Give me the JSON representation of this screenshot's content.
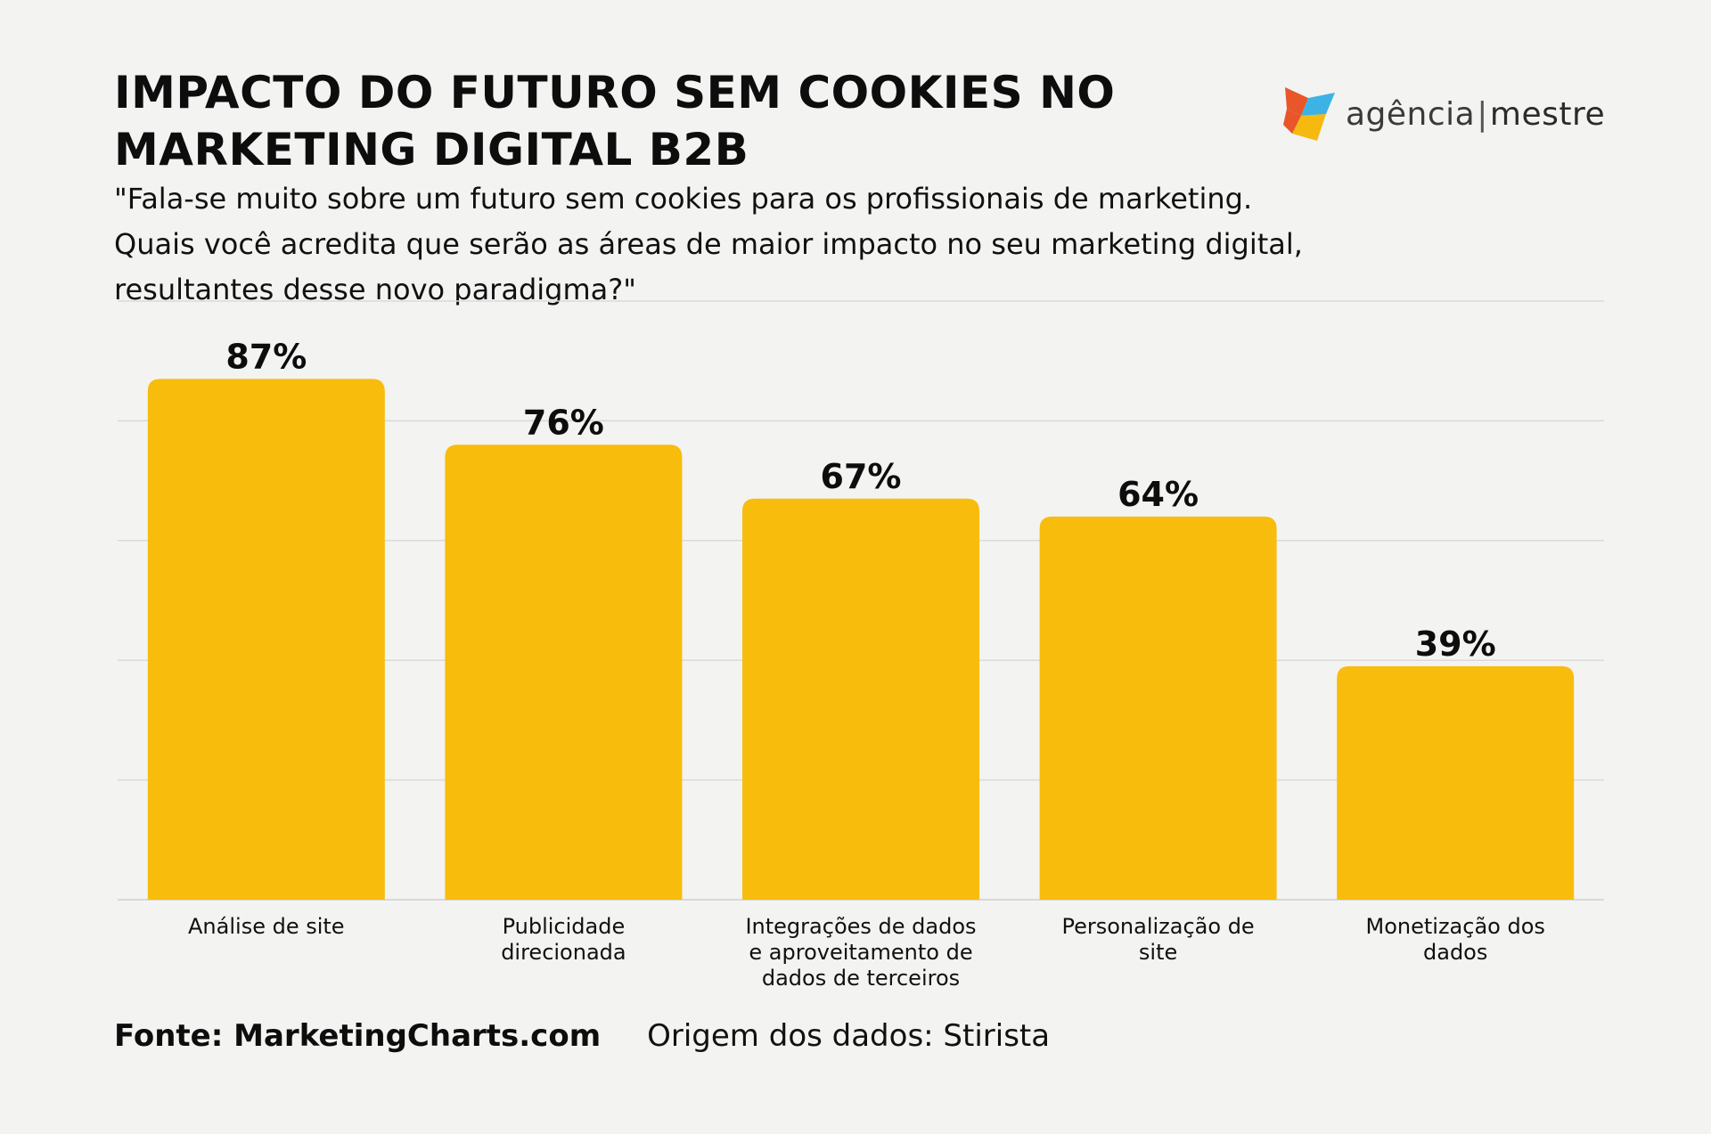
{
  "header": {
    "title_line1": "IMPACTO DO FUTURO SEM COOKIES NO",
    "title_line2": "MARKETING DIGITAL B2B",
    "question_line1": "\"Fala-se muito sobre um futuro sem cookies para os profissionais de marketing.",
    "question_line2": "Quais você acredita que serão as áreas de maior impacto no seu marketing digital,",
    "question_line3": "resultantes desse novo paradigma?\""
  },
  "logo": {
    "text_light": "agência",
    "separator": "|",
    "text_bold": "mestre",
    "icon": "agencia-mestre-logo-icon",
    "colors": [
      "#e8562a",
      "#f6b90f",
      "#3cb3e4"
    ]
  },
  "footer": {
    "source": "Fonte: MarketingCharts.com",
    "origin": "Origem dos dados: Stirista"
  },
  "chart_data": {
    "type": "bar",
    "categories": [
      [
        "Análise de site"
      ],
      [
        "Publicidade",
        "direcionada"
      ],
      [
        "Integrações de dados",
        "e aproveitamento de",
        "dados de terceiros"
      ],
      [
        "Personalização de",
        "site"
      ],
      [
        "Monetização dos",
        "dados"
      ]
    ],
    "values": [
      87,
      76,
      67,
      64,
      39
    ],
    "value_labels": [
      "87%",
      "76%",
      "67%",
      "64%",
      "39%"
    ],
    "unit": "%",
    "ylim": [
      0,
      100
    ],
    "grid": true,
    "bar_color": "#f8bc0c",
    "gridline_color": "#d9d9d9"
  }
}
